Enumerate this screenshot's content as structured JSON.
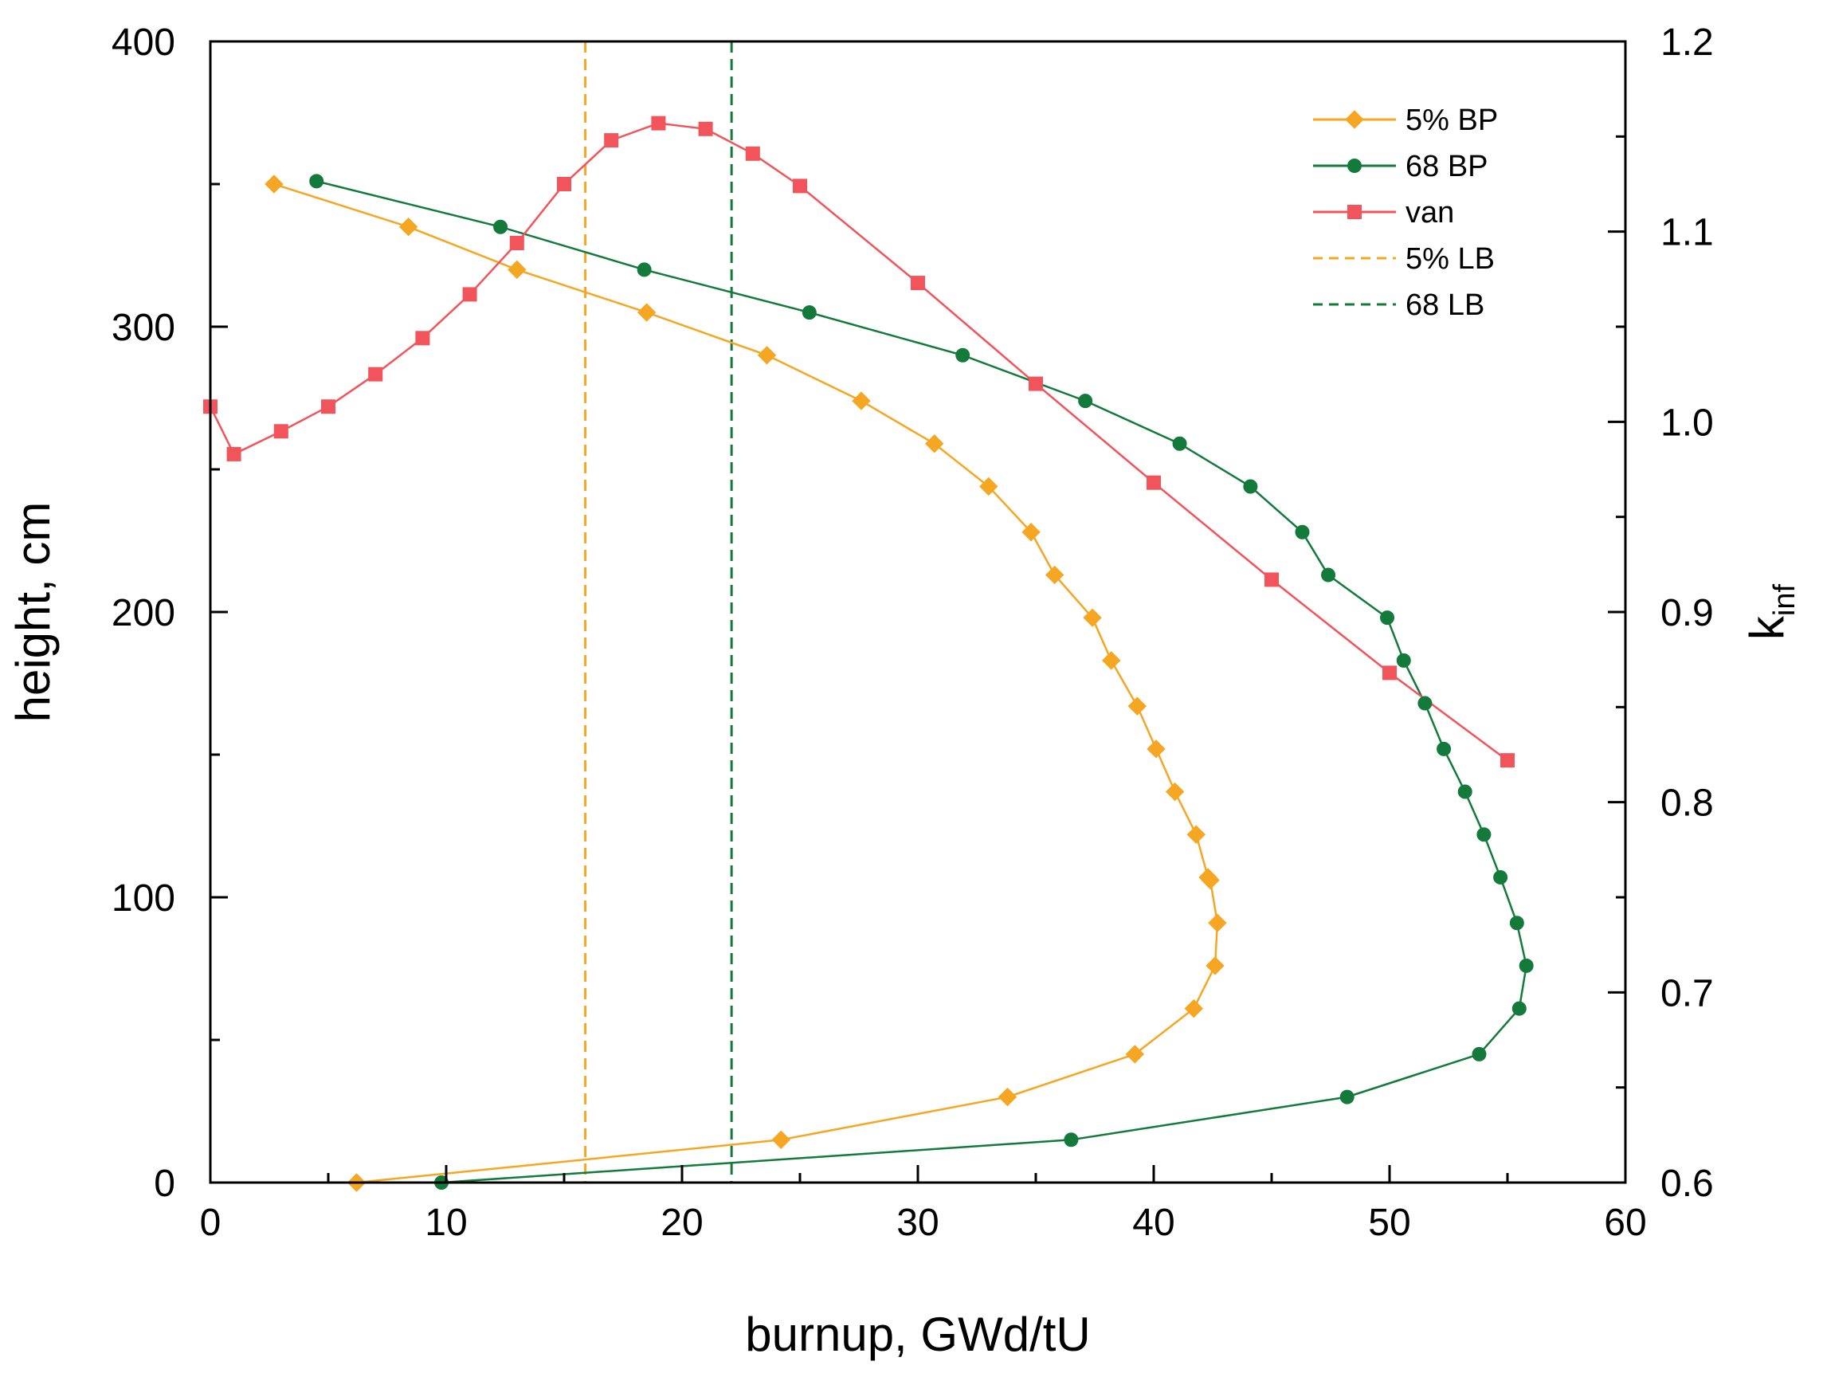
{
  "chart_data": {
    "type": "line",
    "title": "",
    "xlabel": "burnup, GWd/tU",
    "ylabel": "height, cm",
    "y2label": "k",
    "y2label_sub": "inf",
    "xlim": [
      0,
      60
    ],
    "ylim": [
      0,
      400
    ],
    "y2lim": [
      0.6,
      1.2
    ],
    "x_ticks": [
      0,
      10,
      20,
      30,
      40,
      50,
      60
    ],
    "y_ticks": [
      0,
      100,
      200,
      300,
      400
    ],
    "y2_ticks": [
      "0.6",
      "0.7",
      "0.8",
      "0.9",
      "1.0",
      "1.1",
      "1.2"
    ],
    "grid": false,
    "legend_position": "top-right",
    "series": [
      {
        "name": "5% BP",
        "axis": "left",
        "color": "#F5A623",
        "marker": "diamond",
        "x": [
          6.2,
          24.2,
          33.8,
          39.2,
          41.7,
          42.6,
          42.7,
          42.4,
          42.3,
          41.8,
          40.9,
          40.1,
          39.3,
          38.2,
          37.4,
          35.8,
          34.8,
          33.0,
          30.7,
          27.6,
          23.6,
          18.5,
          13.0,
          8.4,
          2.7
        ],
        "y": [
          0,
          15,
          30,
          45,
          61,
          76,
          91,
          106,
          107,
          122,
          137,
          152,
          167,
          183,
          198,
          213,
          228,
          244,
          259,
          274,
          290,
          305,
          320,
          335,
          350
        ]
      },
      {
        "name": "68 BP",
        "axis": "left",
        "color": "#137A3C",
        "marker": "circle",
        "x": [
          9.8,
          36.5,
          48.2,
          53.8,
          55.5,
          55.8,
          55.4,
          54.7,
          54.0,
          53.2,
          52.3,
          51.5,
          50.6,
          49.9,
          47.4,
          46.3,
          44.1,
          41.1,
          37.1,
          31.9,
          25.4,
          18.4,
          12.3,
          4.5
        ],
        "y": [
          0,
          15,
          30,
          45,
          61,
          76,
          91,
          107,
          122,
          137,
          152,
          168,
          183,
          198,
          213,
          228,
          244,
          259,
          274,
          290,
          305,
          320,
          335,
          351
        ]
      },
      {
        "name": "van",
        "axis": "right",
        "color": "#F2545B",
        "marker": "square",
        "x": [
          0,
          1,
          3,
          5,
          7,
          9,
          11,
          13,
          15,
          17,
          19,
          21,
          23,
          25,
          30,
          35,
          40,
          45,
          50,
          55
        ],
        "y": [
          1.008,
          0.983,
          0.995,
          1.008,
          1.025,
          1.044,
          1.067,
          1.094,
          1.125,
          1.148,
          1.157,
          1.154,
          1.141,
          1.124,
          1.073,
          1.02,
          0.968,
          0.917,
          0.868,
          0.822
        ]
      }
    ],
    "vlines": [
      {
        "name": "5% LB",
        "x": 15.9,
        "color": "#F5A623",
        "dash": "dashed"
      },
      {
        "name": "68 LB",
        "x": 22.1,
        "color": "#137A3C",
        "dash": "dashed"
      }
    ]
  }
}
